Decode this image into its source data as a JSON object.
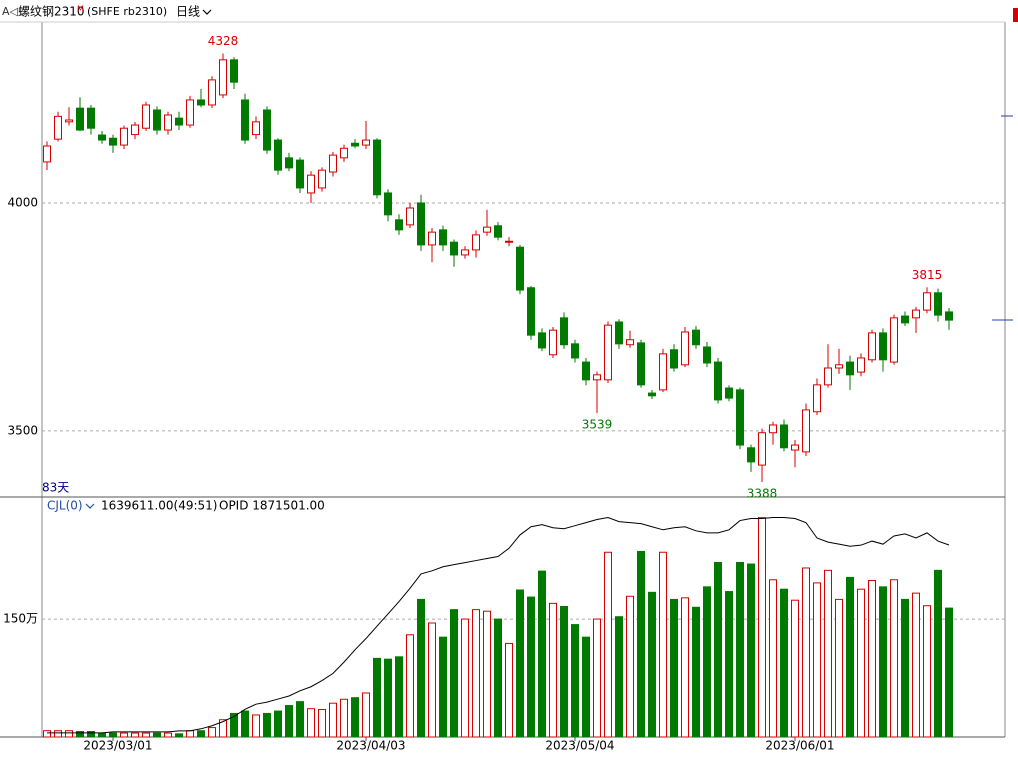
{
  "chart_data": {
    "type": "candlestick",
    "title": "螺纹钢2310",
    "title_badge": "M",
    "symbol": "(SHFE rb2310)",
    "period": "日线",
    "count_label": "83天",
    "up_color": "#d60000",
    "down_color": "#007a00",
    "grid": true,
    "categories": [
      null,
      null,
      null,
      null,
      null,
      null,
      "2023/03/01",
      null,
      null,
      null,
      null,
      null,
      null,
      null,
      null,
      null,
      null,
      null,
      null,
      null,
      null,
      null,
      null,
      null,
      null,
      null,
      null,
      null,
      null,
      "2023/04/03",
      null,
      null,
      null,
      null,
      null,
      null,
      null,
      null,
      null,
      null,
      null,
      null,
      null,
      null,
      null,
      null,
      null,
      null,
      "2023/05/04",
      null,
      null,
      null,
      null,
      null,
      null,
      null,
      null,
      null,
      null,
      null,
      null,
      null,
      null,
      null,
      null,
      null,
      null,
      null,
      "2023/06/01",
      null,
      null,
      null,
      null,
      null,
      null,
      null,
      null,
      null,
      null,
      null,
      null,
      null,
      null
    ],
    "open": [
      4090,
      4140,
      4178,
      4208,
      4208,
      4149,
      4142,
      4127,
      4150,
      4164,
      4204,
      4160,
      4186,
      4171,
      4226,
      4215,
      4237,
      4314,
      4226,
      4150,
      4204,
      4138,
      4099,
      4094,
      4022,
      4033,
      4068,
      4099,
      4131,
      4127,
      4138,
      4022,
      3963,
      3952,
      4000,
      3908,
      3941,
      3914,
      3886,
      3897,
      3936,
      3950,
      3914,
      3903,
      3814,
      3715,
      3667,
      3748,
      3691,
      3651,
      3612,
      3612,
      3739,
      3689,
      3693,
      3583,
      3590,
      3678,
      3645,
      3721,
      3684,
      3651,
      3594,
      3590,
      3463,
      3425,
      3496,
      3513,
      3458,
      3454,
      3542,
      3601,
      3638,
      3651,
      3629,
      3656,
      3715,
      3651,
      3752,
      3748,
      3765,
      3803,
      3761
    ],
    "high": [
      4135,
      4200,
      4210,
      4232,
      4215,
      4158,
      4150,
      4170,
      4178,
      4222,
      4212,
      4200,
      4200,
      4235,
      4250,
      4278,
      4328,
      4320,
      4240,
      4190,
      4212,
      4142,
      4110,
      4100,
      4070,
      4078,
      4112,
      4128,
      4140,
      4180,
      4142,
      4030,
      3975,
      4000,
      4018,
      3945,
      3950,
      3920,
      3905,
      3940,
      3985,
      3958,
      3925,
      3908,
      3818,
      3725,
      3728,
      3760,
      3700,
      3660,
      3630,
      3740,
      3745,
      3720,
      3700,
      3590,
      3680,
      3690,
      3728,
      3730,
      3695,
      3660,
      3600,
      3595,
      3470,
      3505,
      3520,
      3525,
      3480,
      3560,
      3615,
      3690,
      3680,
      3665,
      3670,
      3722,
      3725,
      3755,
      3762,
      3772,
      3815,
      3812,
      3770
    ],
    "low": [
      4072,
      4135,
      4170,
      4158,
      4150,
      4130,
      4110,
      4118,
      4140,
      4158,
      4150,
      4150,
      4160,
      4165,
      4210,
      4208,
      4230,
      4250,
      4130,
      4140,
      4108,
      4062,
      4070,
      4022,
      4000,
      4025,
      4058,
      4090,
      4120,
      4118,
      4010,
      3960,
      3930,
      3945,
      3895,
      3870,
      3895,
      3860,
      3878,
      3880,
      3928,
      3918,
      3905,
      3800,
      3700,
      3675,
      3660,
      3680,
      3650,
      3600,
      3539,
      3605,
      3680,
      3682,
      3595,
      3570,
      3585,
      3630,
      3640,
      3680,
      3640,
      3560,
      3565,
      3460,
      3410,
      3388,
      3470,
      3455,
      3420,
      3445,
      3535,
      3595,
      3625,
      3590,
      3620,
      3650,
      3630,
      3645,
      3730,
      3715,
      3758,
      3740,
      3722
    ],
    "close": [
      4125,
      4190,
      4182,
      4160,
      4164,
      4138,
      4127,
      4164,
      4171,
      4215,
      4160,
      4193,
      4171,
      4226,
      4215,
      4270,
      4314,
      4265,
      4138,
      4178,
      4116,
      4072,
      4077,
      4033,
      4061,
      4072,
      4105,
      4120,
      4125,
      4138,
      4018,
      3974,
      3941,
      3989,
      3908,
      3936,
      3908,
      3886,
      3897,
      3930,
      3947,
      3925,
      3916,
      3809,
      3710,
      3682,
      3721,
      3689,
      3660,
      3612,
      3623,
      3732,
      3691,
      3700,
      3601,
      3577,
      3669,
      3638,
      3717,
      3689,
      3649,
      3568,
      3572,
      3469,
      3432,
      3496,
      3513,
      3463,
      3469,
      3546,
      3601,
      3638,
      3645,
      3623,
      3660,
      3715,
      3656,
      3748,
      3737,
      3765,
      3803,
      3754,
      3743
    ],
    "ylim": [
      3355,
      4397
    ],
    "yticks": [
      3500,
      4000
    ],
    "annotations": [
      {
        "ref": "high",
        "index": 16
      },
      {
        "ref": "low",
        "index": 50
      },
      {
        "ref": "low",
        "index": 65
      },
      {
        "ref": "high",
        "index": 80
      }
    ],
    "volume": {
      "header": "CJL(0)",
      "readout": "1639611.00(49:51)",
      "oi_readout": "OPID 1871501.00",
      "ylim": [
        0,
        3040000
      ],
      "yticks": [
        {
          "value": 1500000,
          "label": "150万"
        }
      ],
      "values": [
        80000,
        80000,
        80000,
        70000,
        70000,
        50000,
        50000,
        50000,
        50000,
        50000,
        50000,
        50000,
        40000,
        80000,
        80000,
        120000,
        220000,
        300000,
        330000,
        280000,
        300000,
        330000,
        400000,
        450000,
        360000,
        350000,
        430000,
        480000,
        500000,
        560000,
        1000000,
        990000,
        1020000,
        1300000,
        1750000,
        1450000,
        1270000,
        1620000,
        1500000,
        1620000,
        1600000,
        1500000,
        1190000,
        1870000,
        1780000,
        2110000,
        1700000,
        1660000,
        1430000,
        1270000,
        1500000,
        2350000,
        1530000,
        1790000,
        2360000,
        1840000,
        2350000,
        1750000,
        1770000,
        1650000,
        1910000,
        2220000,
        1850000,
        2220000,
        2200000,
        2790000,
        2000000,
        1880000,
        1740000,
        2150000,
        1960000,
        2120000,
        1750000,
        2030000,
        1880000,
        1990000,
        1910000,
        2000000,
        1750000,
        1830000,
        1670000,
        2120000,
        1639611
      ],
      "oi": {
        "color": "#000000",
        "axis": "y2",
        "y2lim": [
          0,
          2330000
        ],
        "values": [
          40000,
          40000,
          40000,
          40000,
          40000,
          40000,
          50000,
          50000,
          50000,
          50000,
          50000,
          50000,
          60000,
          60000,
          80000,
          110000,
          150000,
          200000,
          270000,
          320000,
          340000,
          370000,
          400000,
          450000,
          490000,
          550000,
          620000,
          730000,
          850000,
          960000,
          1080000,
          1200000,
          1320000,
          1450000,
          1590000,
          1620000,
          1660000,
          1680000,
          1700000,
          1720000,
          1740000,
          1760000,
          1840000,
          1970000,
          2050000,
          2070000,
          2040000,
          2030000,
          2060000,
          2090000,
          2120000,
          2140000,
          2100000,
          2090000,
          2080000,
          2050000,
          2020000,
          2040000,
          2050000,
          2010000,
          1990000,
          1990000,
          2020000,
          2110000,
          2130000,
          2130000,
          2140000,
          2140000,
          2130000,
          2090000,
          1940000,
          1900000,
          1880000,
          1860000,
          1870000,
          1910000,
          1880000,
          1960000,
          1980000,
          1940000,
          1990000,
          1910000,
          1871501
        ]
      }
    }
  }
}
